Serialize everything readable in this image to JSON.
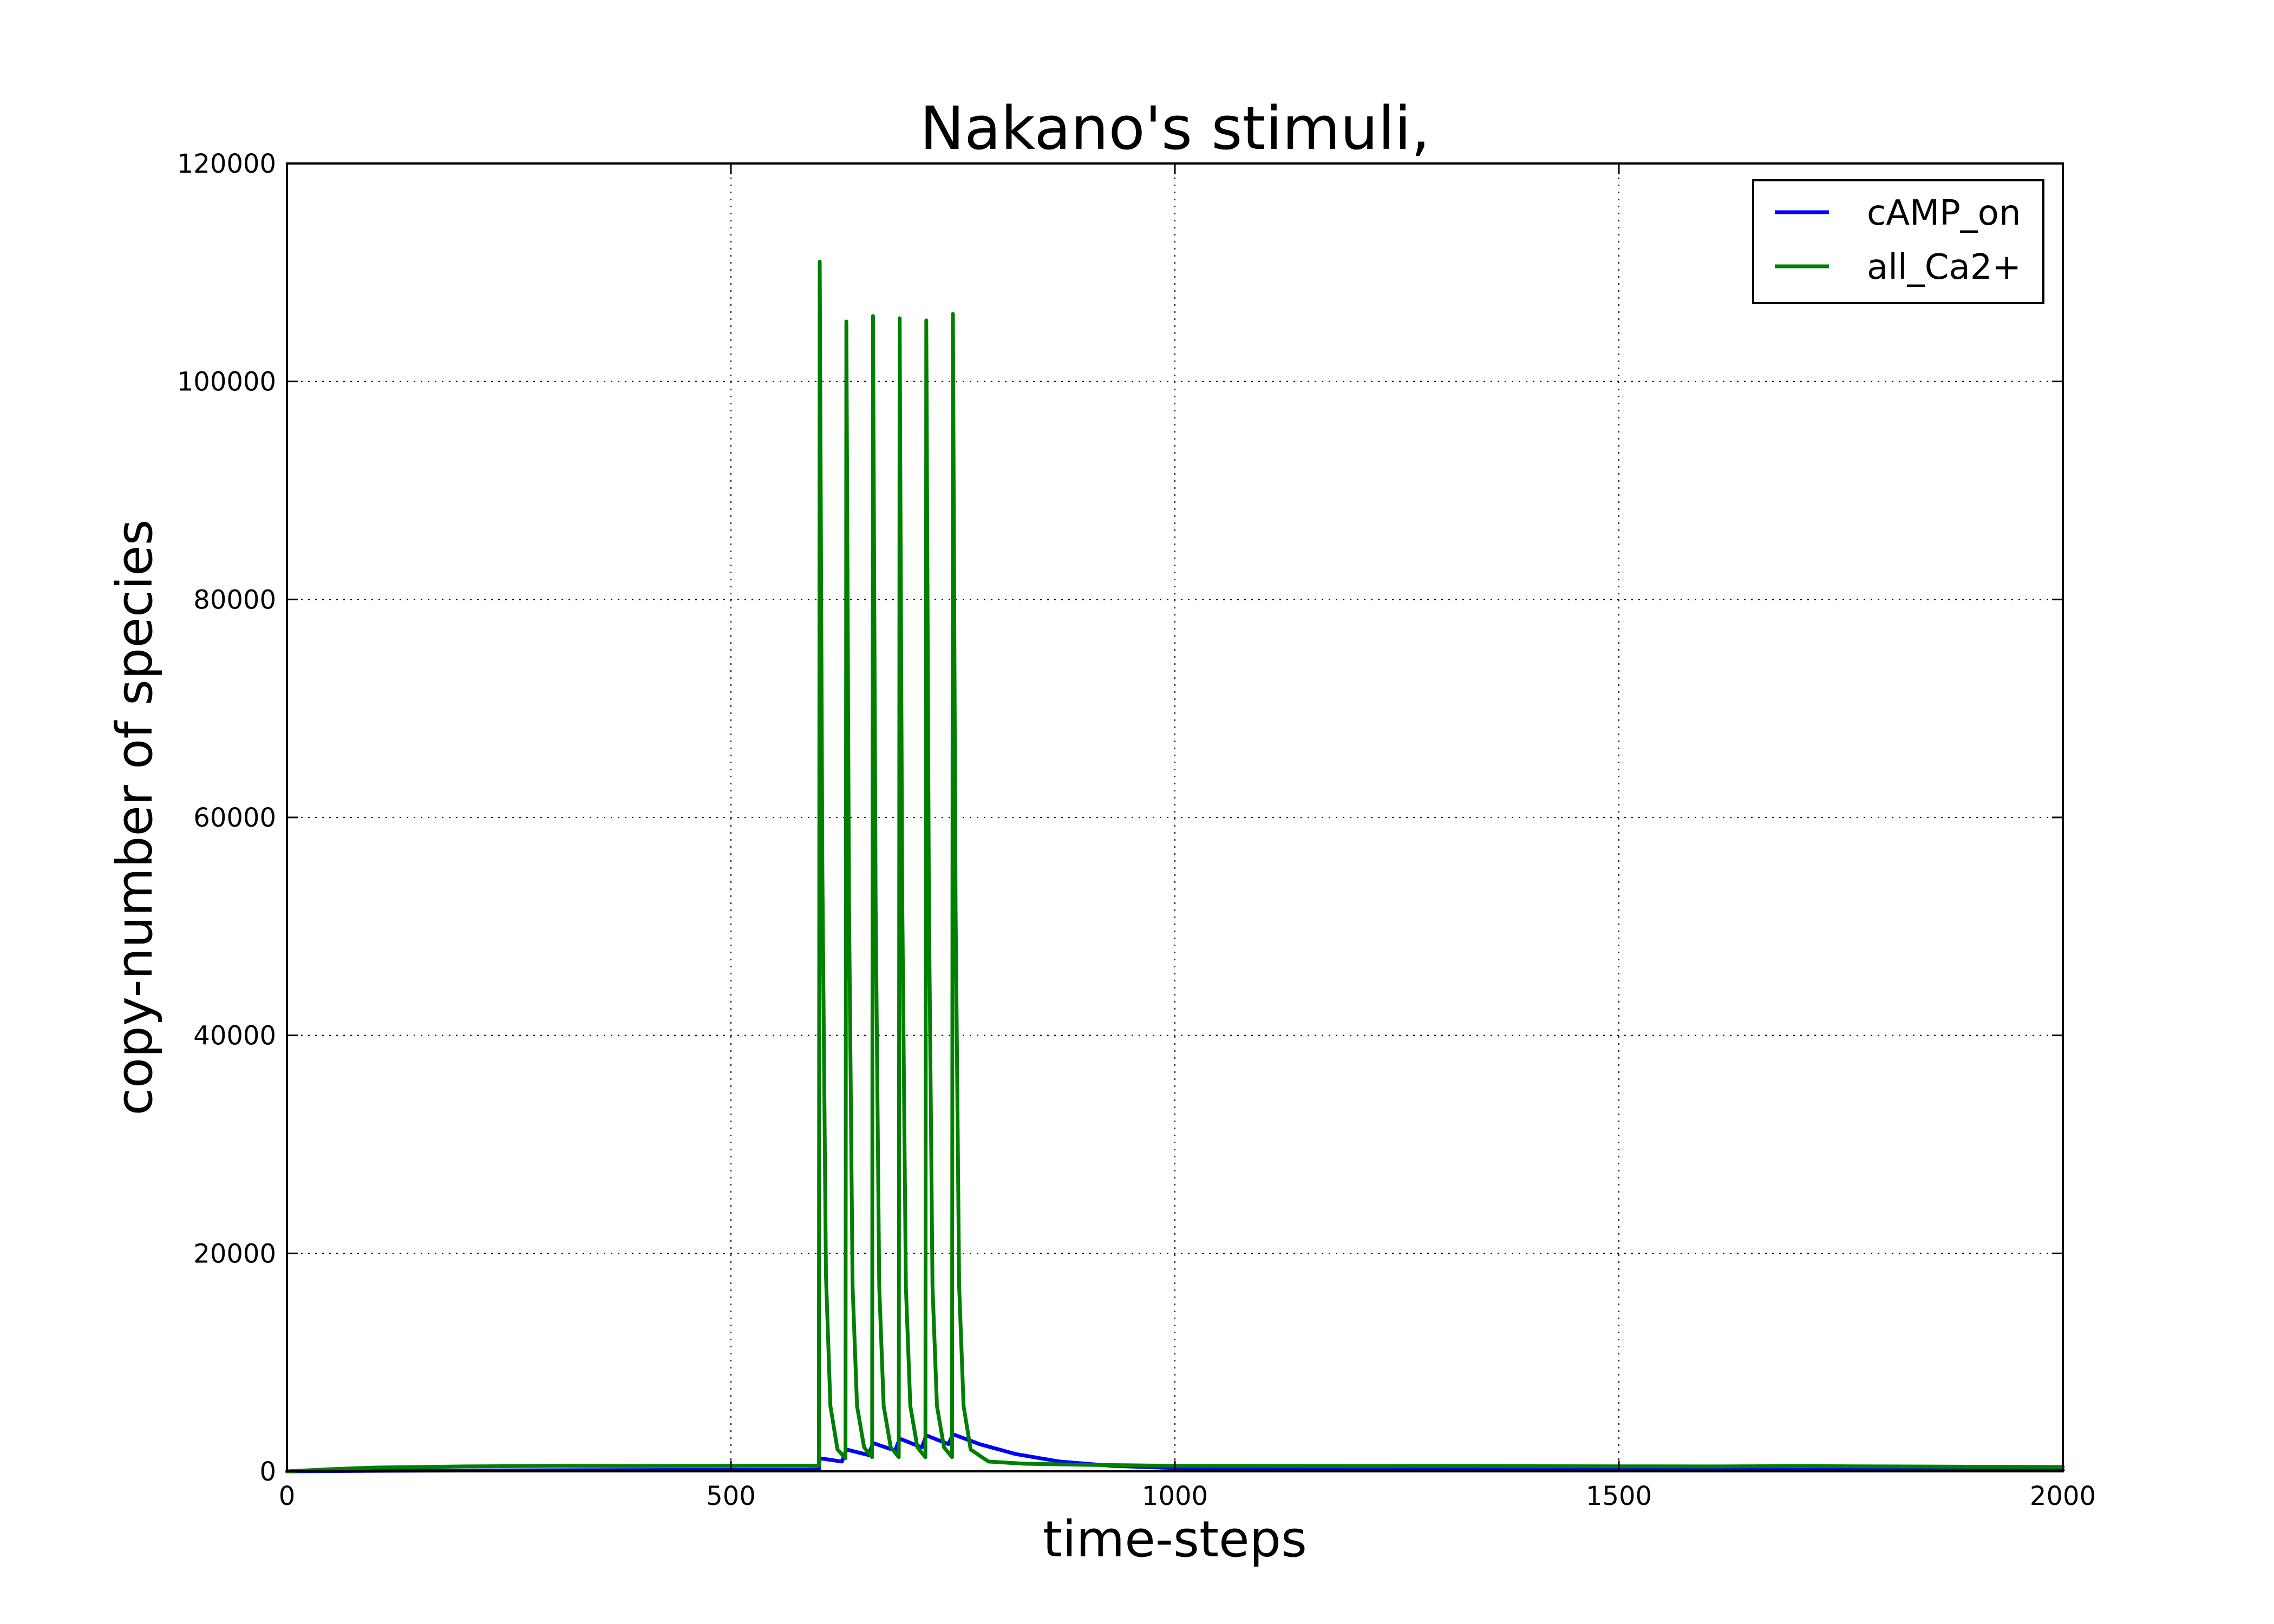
{
  "chart_data": {
    "type": "line",
    "title": "Nakano's stimuli,",
    "xlabel": "time-steps",
    "ylabel": "copy-number of species",
    "xlim": [
      0,
      2000
    ],
    "ylim": [
      0,
      120000
    ],
    "xticks": [
      0,
      500,
      1000,
      1500,
      2000
    ],
    "yticks": [
      0,
      20000,
      40000,
      60000,
      80000,
      100000,
      120000
    ],
    "grid": true,
    "legend_position": "top-right",
    "series": [
      {
        "name": "cAMP_on",
        "color": "#0000ff",
        "x": [
          0,
          100,
          300,
          599,
          600,
          625,
          630,
          655,
          660,
          685,
          690,
          715,
          720,
          745,
          750,
          780,
          820,
          870,
          930,
          1000,
          1200,
          1500,
          2000
        ],
        "y": [
          0,
          50,
          100,
          150,
          1200,
          900,
          2000,
          1500,
          2600,
          1900,
          3000,
          2200,
          3300,
          2500,
          3400,
          2500,
          1600,
          900,
          500,
          300,
          200,
          150,
          120
        ]
      },
      {
        "name": "all_Ca2+",
        "color": "#007f00",
        "x": [
          0,
          50,
          100,
          200,
          300,
          400,
          500,
          580,
          599,
          600,
          603,
          607,
          612,
          620,
          629,
          630,
          633,
          637,
          642,
          650,
          659,
          660,
          663,
          667,
          672,
          680,
          689,
          690,
          693,
          697,
          702,
          710,
          719,
          720,
          723,
          727,
          732,
          740,
          749,
          750,
          753,
          757,
          762,
          770,
          790,
          830,
          900,
          950,
          1000,
          1100,
          1200,
          1300,
          1400,
          1500,
          1600,
          1700,
          1800,
          1900,
          2000
        ],
        "y": [
          0,
          200,
          350,
          450,
          500,
          480,
          500,
          520,
          500,
          111000,
          55000,
          18000,
          6000,
          2000,
          1200,
          105500,
          52000,
          17000,
          6000,
          2200,
          1300,
          106000,
          52000,
          17000,
          6000,
          2200,
          1300,
          105800,
          52000,
          17000,
          6000,
          2200,
          1300,
          105600,
          52000,
          17000,
          6000,
          2200,
          1300,
          106200,
          52000,
          17000,
          6000,
          2000,
          900,
          700,
          600,
          550,
          500,
          480,
          470,
          480,
          470,
          460,
          450,
          480,
          450,
          420,
          400
        ]
      }
    ]
  }
}
